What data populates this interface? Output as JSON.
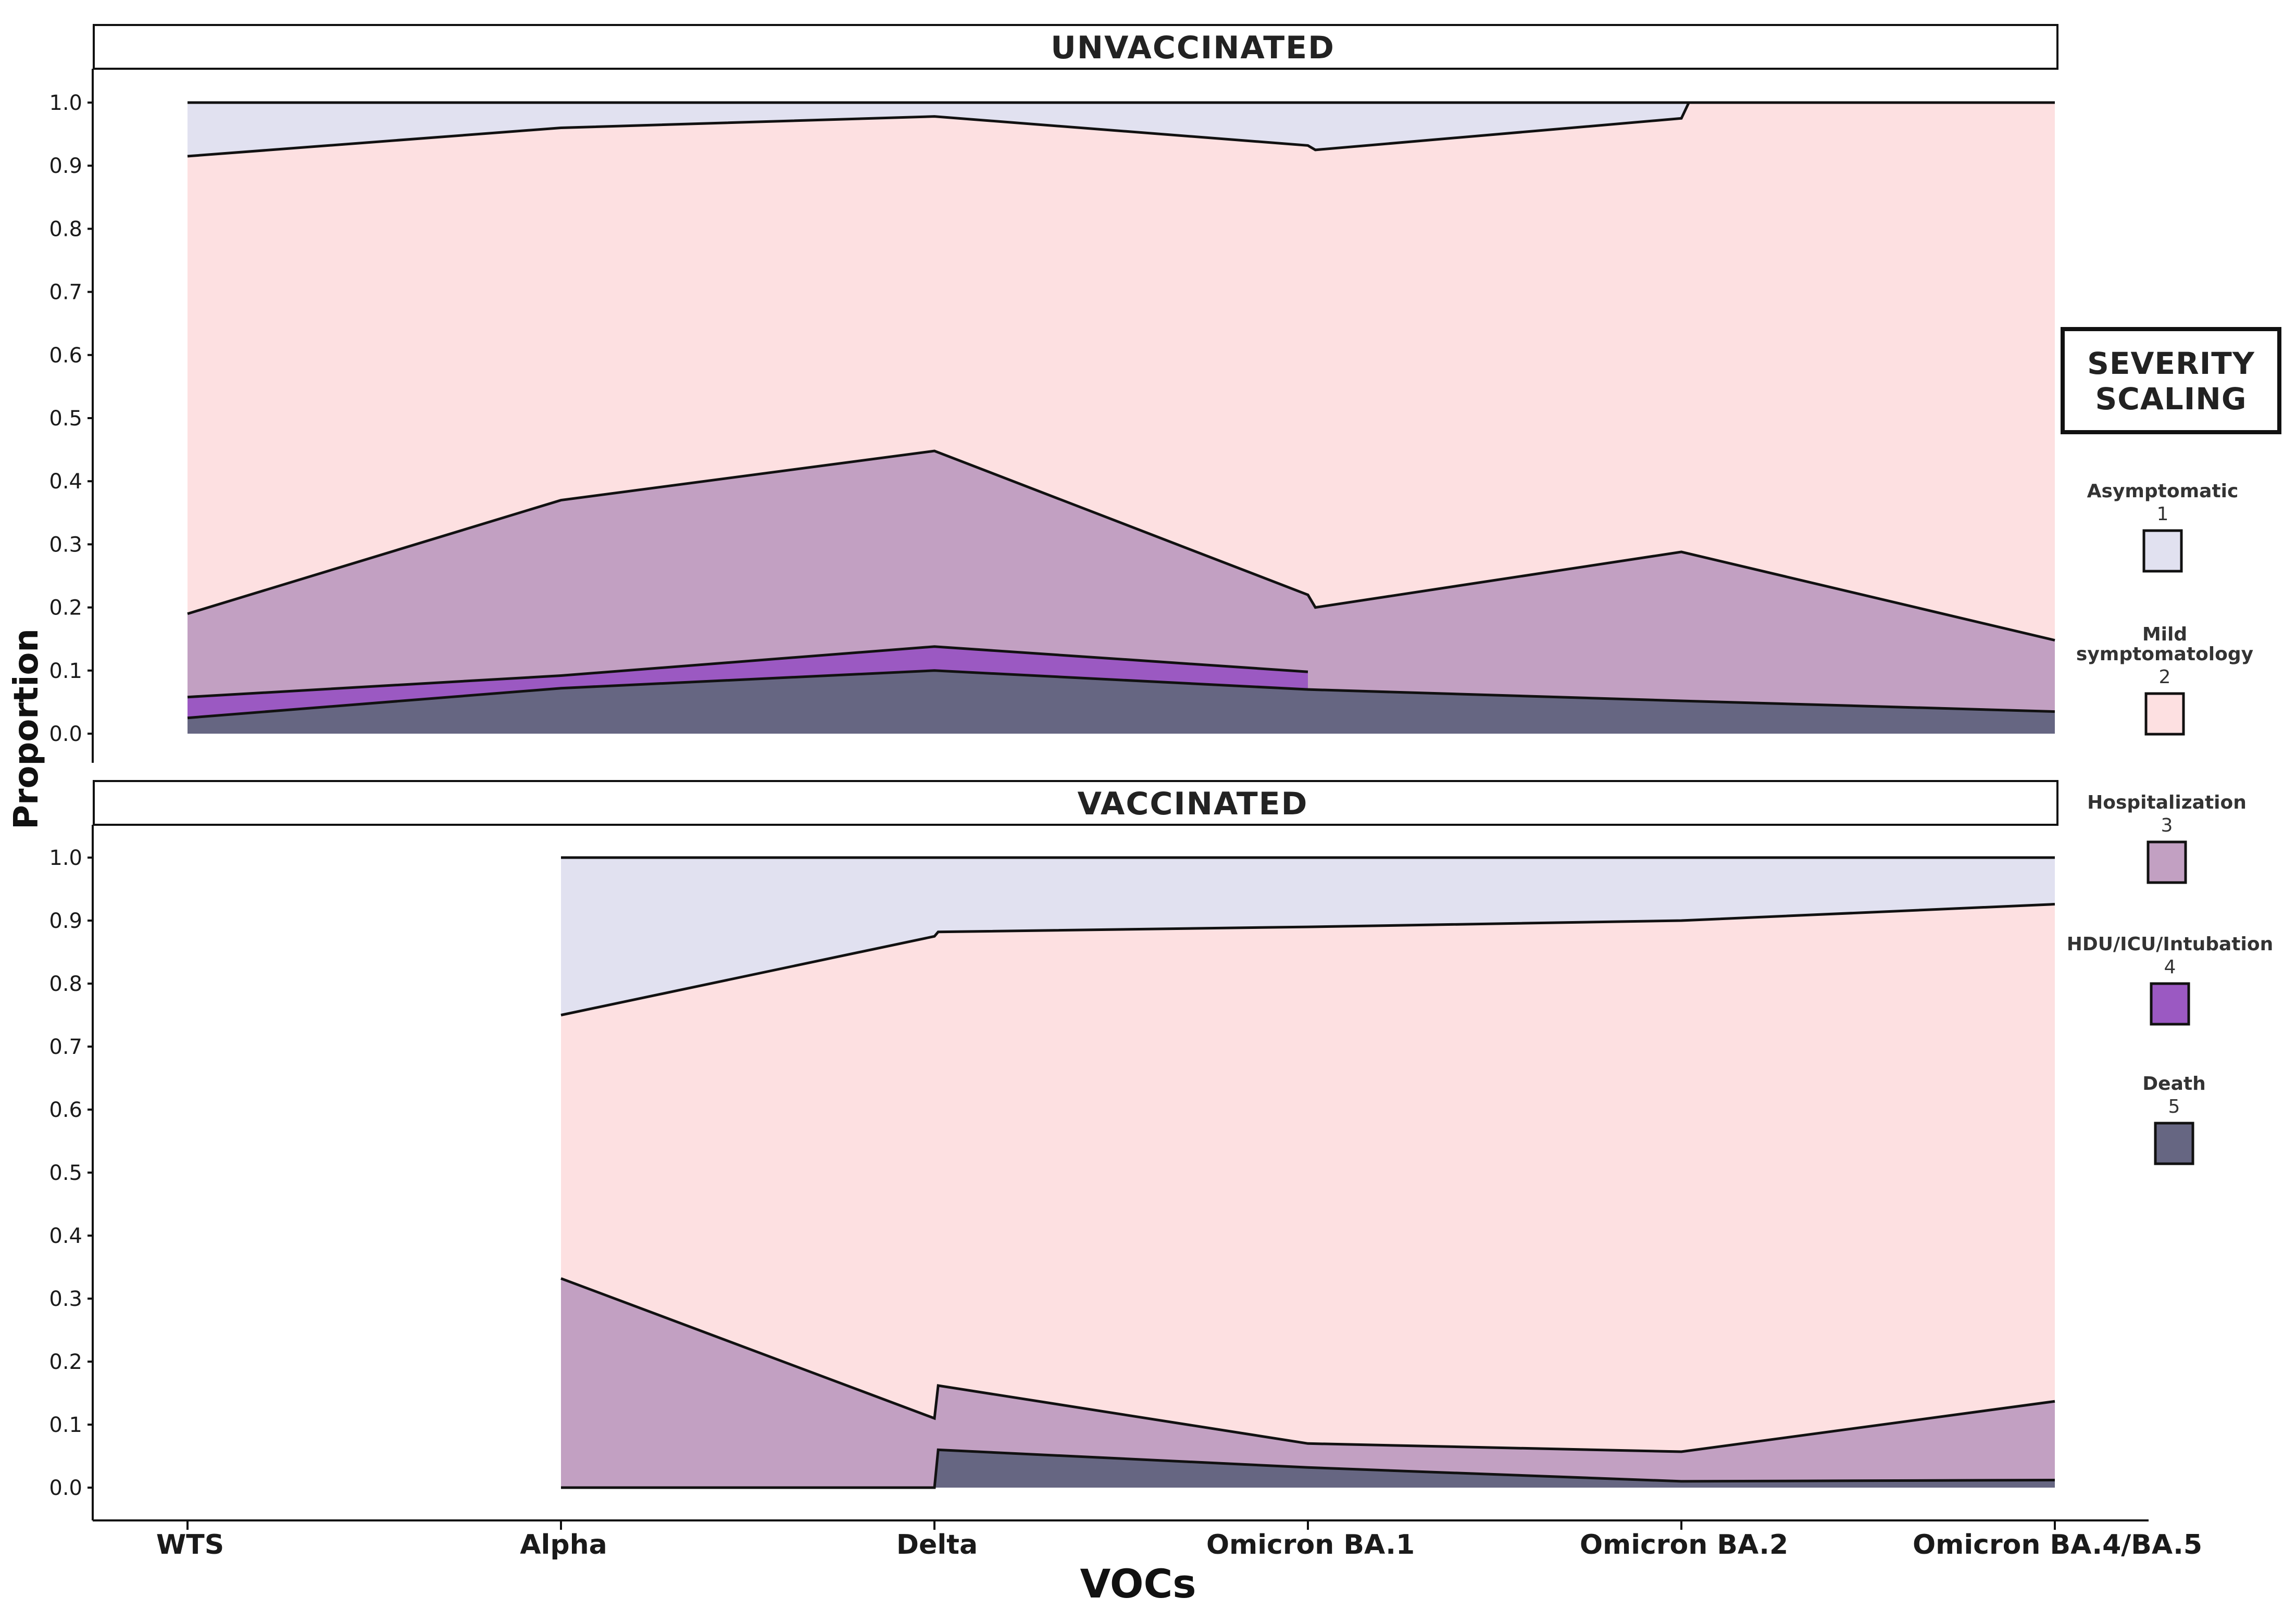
{
  "chart_data": {
    "type": "area",
    "title": "",
    "xlabel": "VOCs",
    "ylabel": "Proportion",
    "categories": [
      "WTS",
      "Alpha",
      "Delta",
      "Omicron BA.1",
      "Omicron BA.2",
      "Omicron BA.4/BA.5"
    ],
    "yticks": [
      "0.0",
      "0.1",
      "0.2",
      "0.3",
      "0.4",
      "0.5",
      "0.6",
      "0.7",
      "0.8",
      "0.9",
      "1.0"
    ],
    "ylim": [
      0,
      1
    ],
    "series_names": [
      "Asymptomatic",
      "Mild symptomatology",
      "Hospitalization",
      "HDU/ICU/Intubation",
      "Death"
    ],
    "panels": [
      {
        "title": "UNVACCINATED",
        "boundaries": [
          {
            "from": "Death",
            "to": "HDU/ICU/Intubation",
            "points": [
              [
                0,
                0.025
              ],
              [
                1,
                0.072
              ],
              [
                2,
                0.1
              ],
              [
                3,
                0.07
              ],
              [
                4,
                0.052
              ],
              [
                5,
                0.035
              ]
            ]
          },
          {
            "from": "HDU/ICU/Intubation",
            "to": "Hospitalization",
            "points": [
              [
                0,
                0.058
              ],
              [
                1,
                0.092
              ],
              [
                2,
                0.138
              ],
              [
                3,
                0.098
              ]
            ]
          },
          {
            "from": "Hospitalization",
            "to": "Mild symptomatology",
            "points": [
              [
                0,
                0.19
              ],
              [
                1,
                0.37
              ],
              [
                2,
                0.448
              ],
              [
                3,
                0.22
              ],
              [
                3.02,
                0.2
              ],
              [
                4,
                0.288
              ],
              [
                5,
                0.148
              ]
            ]
          },
          {
            "from": "Mild symptomatology",
            "to": "Asymptomatic",
            "points": [
              [
                0,
                0.915
              ],
              [
                1,
                0.96
              ],
              [
                2,
                0.978
              ],
              [
                3,
                0.932
              ],
              [
                3.02,
                0.925
              ],
              [
                4,
                0.975
              ],
              [
                4.02,
                1.0
              ],
              [
                5,
                1.0
              ]
            ]
          }
        ]
      },
      {
        "title": "VACCINATED",
        "boundaries": [
          {
            "from": "Death",
            "to": "Hospitalization",
            "points": [
              [
                1,
                0.0
              ],
              [
                2,
                0.0
              ],
              [
                2.01,
                0.06
              ],
              [
                3,
                0.032
              ],
              [
                4,
                0.01
              ],
              [
                5,
                0.012
              ]
            ]
          },
          {
            "from": "Hospitalization",
            "to": "Mild symptomatology",
            "points": [
              [
                1,
                0.332
              ],
              [
                2,
                0.11
              ],
              [
                2.01,
                0.162
              ],
              [
                3,
                0.07
              ],
              [
                4,
                0.057
              ],
              [
                5,
                0.137
              ]
            ]
          },
          {
            "from": "Mild symptomatology",
            "to": "Asymptomatic",
            "points": [
              [
                1,
                0.75
              ],
              [
                2,
                0.875
              ],
              [
                2.01,
                0.882
              ],
              [
                3,
                0.89
              ],
              [
                4,
                0.9
              ],
              [
                5,
                0.926
              ]
            ]
          }
        ],
        "x_start": "Alpha"
      }
    ],
    "legend": {
      "title_line1": "SEVERITY",
      "title_line2": "SCALING",
      "position": "right",
      "items": [
        {
          "label": "Asymptomatic",
          "label_line2": "",
          "level": "1",
          "color": "#e1e1f0"
        },
        {
          "label": "Mild",
          "label_line2": "symptomatology",
          "level": "2",
          "color": "#fde0e1"
        },
        {
          "label": "Hospitalization",
          "label_line2": "",
          "level": "3",
          "color": "#c2a0c2"
        },
        {
          "label": "HDU/ICU/Intubation",
          "label_line2": "",
          "level": "4",
          "color": "#9b59c2"
        },
        {
          "label": "Death",
          "label_line2": "",
          "level": "5",
          "color": "#666682"
        }
      ]
    }
  }
}
